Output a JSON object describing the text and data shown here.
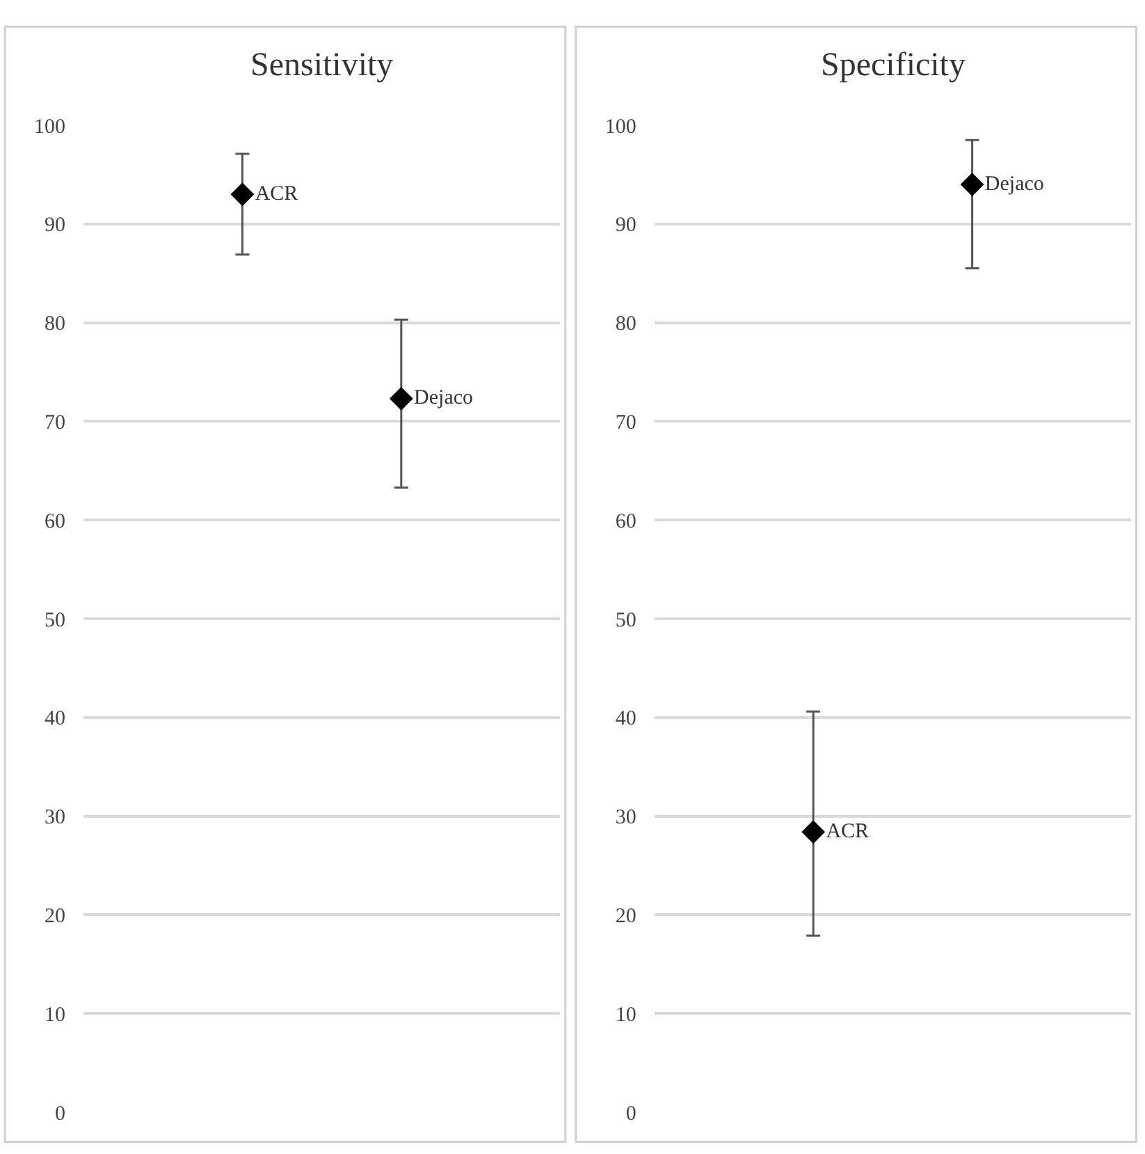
{
  "chart_data": [
    {
      "type": "scatter",
      "title": "Sensitivity",
      "categories": [
        null,
        null
      ],
      "ylim": [
        0,
        100
      ],
      "yticks": [
        0,
        10,
        20,
        30,
        40,
        50,
        60,
        70,
        80,
        90,
        100
      ],
      "grid": "y",
      "legend": false,
      "marker": "diamond",
      "series": [
        {
          "name": "ACR",
          "color": "#000000",
          "values": [
            93.0,
            null
          ],
          "errors": [
            [
              86.9,
              97.1
            ],
            null
          ]
        },
        {
          "name": "Dejaco",
          "color": "#000000",
          "values": [
            null,
            72.3
          ],
          "errors": [
            null,
            [
              63.3,
              80.3
            ]
          ]
        }
      ]
    },
    {
      "type": "scatter",
      "title": "Specificity",
      "categories": [
        null,
        null
      ],
      "ylim": [
        0,
        100
      ],
      "yticks": [
        0,
        10,
        20,
        30,
        40,
        50,
        60,
        70,
        80,
        90,
        100
      ],
      "grid": "y",
      "legend": false,
      "marker": "diamond",
      "series": [
        {
          "name": "ACR",
          "color": "#000000",
          "values": [
            28.4,
            null
          ],
          "errors": [
            [
              17.9,
              40.6
            ],
            null
          ]
        },
        {
          "name": "Dejaco",
          "color": "#000000",
          "values": [
            null,
            94.0
          ],
          "errors": [
            null,
            [
              85.5,
              98.5
            ]
          ]
        }
      ]
    }
  ]
}
